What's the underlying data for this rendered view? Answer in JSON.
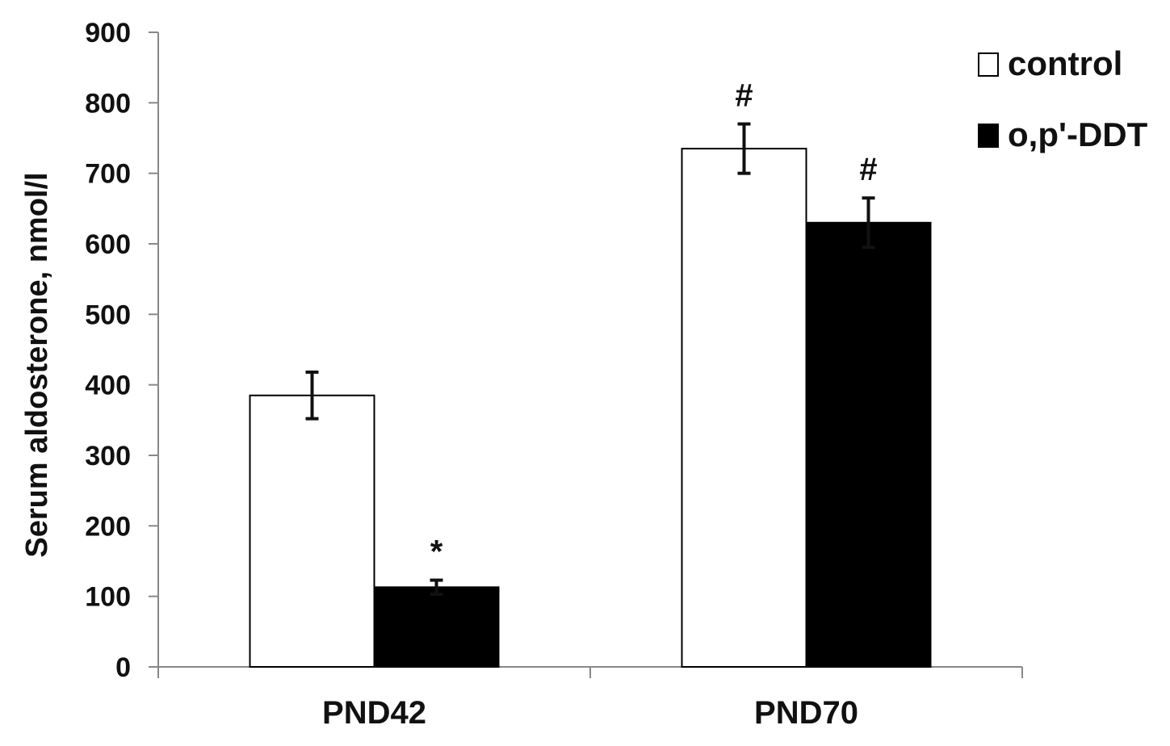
{
  "chart_data": {
    "type": "bar",
    "ylabel": "Serum aldosterone, nmol/l",
    "xlabel": "",
    "ylim": [
      0,
      900
    ],
    "yticks": [
      0,
      100,
      200,
      300,
      400,
      500,
      600,
      700,
      800,
      900
    ],
    "categories": [
      "PND42",
      "PND70"
    ],
    "series": [
      {
        "name": "control",
        "color": "#ffffff",
        "values": [
          385,
          735
        ],
        "errors": [
          33,
          35
        ],
        "annotations": [
          "",
          "#"
        ]
      },
      {
        "name": "o,p'-DDT",
        "color": "#000000",
        "values": [
          113,
          630
        ],
        "errors": [
          10,
          35
        ],
        "annotations": [
          "*",
          "#"
        ]
      }
    ],
    "legend": "top-right",
    "grid": false
  }
}
